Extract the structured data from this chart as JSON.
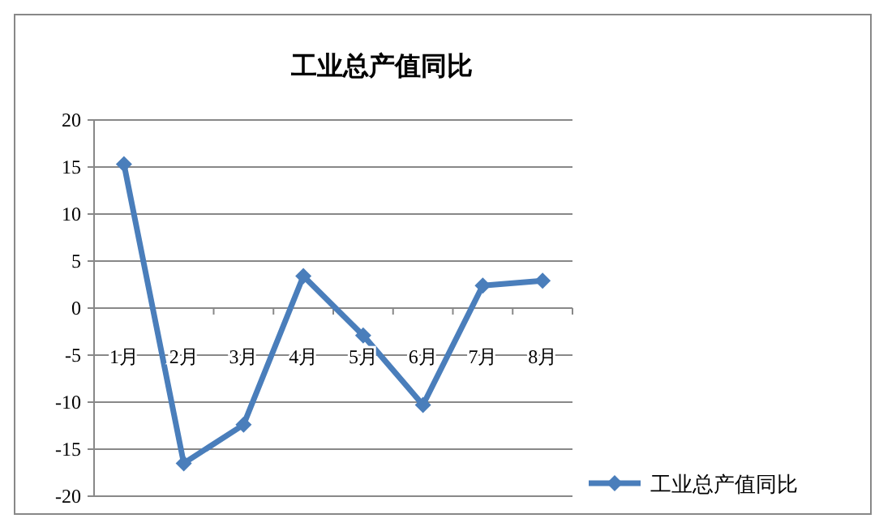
{
  "chart_data": {
    "type": "line",
    "title": "工业总产值同比",
    "categories": [
      "1月",
      "2月",
      "3月",
      "4月",
      "5月",
      "6月",
      "7月",
      "8月"
    ],
    "series": [
      {
        "name": "工业总产值同比",
        "color": "#4a7ebb",
        "values": [
          15.3,
          -16.5,
          -12.4,
          3.4,
          -2.9,
          -10.3,
          2.4,
          2.9
        ]
      }
    ],
    "ylim": [
      -20,
      20
    ],
    "yticks": [
      -20,
      -15,
      -10,
      -5,
      0,
      5,
      10,
      15,
      20
    ],
    "grid": "y",
    "legend": "right",
    "marker": "diamond"
  }
}
